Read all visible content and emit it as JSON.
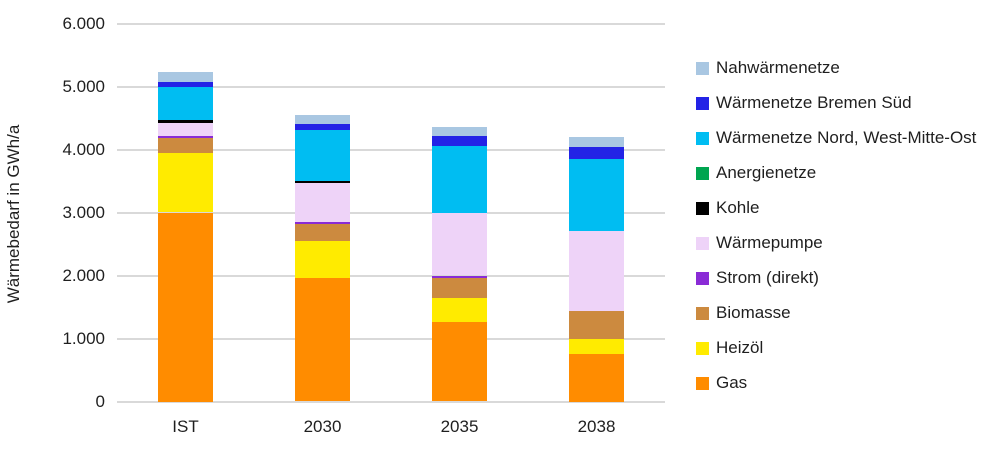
{
  "chart_data": {
    "type": "bar",
    "stacked": true,
    "ylabel": "Wärmebedarf in GWh/a",
    "xlabel": "",
    "categories": [
      "IST",
      "2030",
      "2035",
      "2038"
    ],
    "series": [
      {
        "name": "Gas",
        "color": "#FF8C00",
        "values": [
          3000,
          1960,
          1265,
          750
        ]
      },
      {
        "name": "Heizöl",
        "color": "#FFEB00",
        "values": [
          950,
          590,
          380,
          235
        ]
      },
      {
        "name": "Biomasse",
        "color": "#CC8A3F",
        "values": [
          230,
          265,
          315,
          450
        ]
      },
      {
        "name": "Strom (direkt)",
        "color": "#8A2BD6",
        "values": [
          35,
          30,
          40,
          0
        ]
      },
      {
        "name": "Wärmepumpe",
        "color": "#EED3F8",
        "values": [
          210,
          620,
          985,
          1275
        ]
      },
      {
        "name": "Kohle",
        "color": "#000000",
        "values": [
          40,
          35,
          0,
          0
        ]
      },
      {
        "name": "Anergienetze",
        "color": "#00A550",
        "values": [
          0,
          0,
          0,
          0
        ]
      },
      {
        "name": "Wärmenetze Nord, West-Mitte-Ost",
        "color": "#00BDF2",
        "values": [
          520,
          810,
          1070,
          1145
        ]
      },
      {
        "name": "Wärmenetze Bremen Süd",
        "color": "#2323E6",
        "values": [
          90,
          95,
          160,
          180
        ]
      },
      {
        "name": "Nahwärmenetze",
        "color": "#A9C7E2",
        "values": [
          150,
          140,
          135,
          165
        ]
      }
    ],
    "totals": [
      5225,
      4545,
      4350,
      4200
    ],
    "ylim": [
      0,
      6000
    ],
    "ytick_step": 1000,
    "yticks": [
      {
        "value": 0,
        "label": "0"
      },
      {
        "value": 1000,
        "label": "1.000"
      },
      {
        "value": 2000,
        "label": "2.000"
      },
      {
        "value": 3000,
        "label": "3.000"
      },
      {
        "value": 4000,
        "label": "4.000"
      },
      {
        "value": 5000,
        "label": "5.000"
      },
      {
        "value": 6000,
        "label": "6.000"
      }
    ],
    "grid": true,
    "legend_position": "right",
    "legend_items_top_to_bottom": [
      "Nahwärmenetze",
      "Wärmenetze Bremen Süd",
      "Wärmenetze Nord, West-Mitte-Ost",
      "Anergienetze",
      "Kohle",
      "Wärmepumpe",
      "Strom (direkt)",
      "Biomasse",
      "Heizöl",
      "Gas"
    ]
  }
}
